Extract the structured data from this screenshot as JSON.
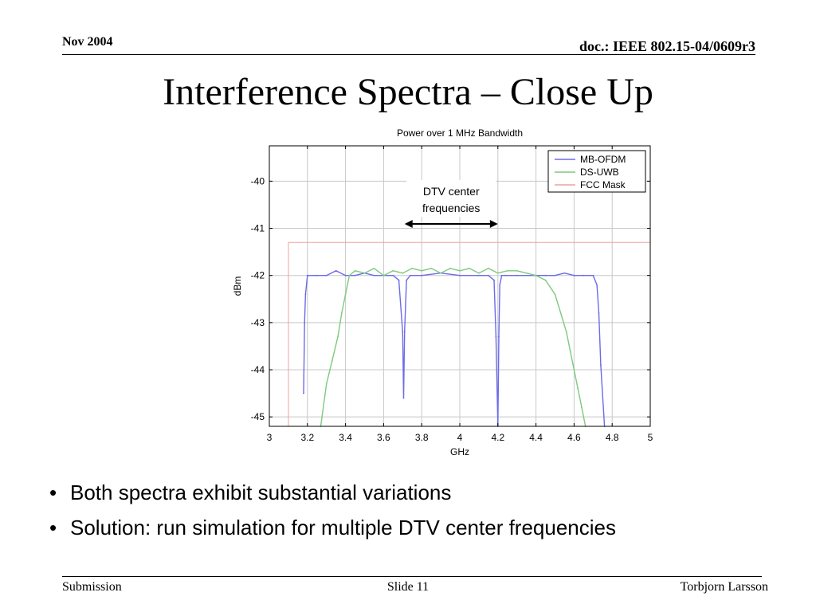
{
  "header": {
    "date": "Nov 2004",
    "doc": "doc.: IEEE 802.15-04/0609r3"
  },
  "slide_title": "Interference Spectra – Close Up",
  "bullets": [
    "Both spectra exhibit substantial variations",
    "Solution: run simulation for multiple DTV center frequencies"
  ],
  "footer": {
    "left": "Submission",
    "center": "Slide 11",
    "right": "Torbjorn Larsson"
  },
  "colors": {
    "mb_ofdm": "#6b6bea",
    "ds_uwb": "#7fc97f",
    "fcc_mask": "#f0a0a0"
  },
  "chart_data": {
    "type": "line",
    "title": "Power over 1 MHz Bandwidth",
    "xlabel": "GHz",
    "ylabel": "dBm",
    "xlim": [
      3,
      5
    ],
    "ylim": [
      -45.2,
      -39.25
    ],
    "xticks": [
      "3",
      "3.2",
      "3.4",
      "3.6",
      "3.8",
      "4",
      "4.2",
      "4.4",
      "4.6",
      "4.8",
      "5"
    ],
    "yticks": [
      "-40",
      "-41",
      "-42",
      "-43",
      "-44",
      "-45"
    ],
    "grid": true,
    "legend_position": "top-right",
    "annotation": {
      "text": [
        "DTV center",
        "frequencies"
      ],
      "arrow_x": [
        3.71,
        4.2
      ]
    },
    "series": [
      {
        "name": "MB-OFDM",
        "x": [
          3.18,
          3.185,
          3.19,
          3.2,
          3.25,
          3.3,
          3.35,
          3.4,
          3.45,
          3.5,
          3.55,
          3.6,
          3.65,
          3.68,
          3.7,
          3.705,
          3.71,
          3.72,
          3.74,
          3.8,
          3.9,
          4.0,
          4.1,
          4.15,
          4.18,
          4.19,
          4.2,
          4.205,
          4.21,
          4.22,
          4.24,
          4.3,
          4.4,
          4.45,
          4.5,
          4.55,
          4.6,
          4.65,
          4.7,
          4.72,
          4.73,
          4.74,
          4.76
        ],
        "y": [
          -44.5,
          -43.0,
          -42.4,
          -42.0,
          -42.0,
          -42.0,
          -41.9,
          -42.0,
          -42.0,
          -41.95,
          -42.0,
          -42.0,
          -42.0,
          -42.1,
          -43.2,
          -44.6,
          -43.2,
          -42.1,
          -42.0,
          -42.0,
          -41.95,
          -42.0,
          -42.0,
          -42.0,
          -42.1,
          -43.3,
          -45.2,
          -43.3,
          -42.2,
          -42.0,
          -42.0,
          -42.0,
          -42.0,
          -42.0,
          -42.0,
          -41.95,
          -42.0,
          -42.0,
          -42.0,
          -42.2,
          -42.8,
          -43.9,
          -45.2
        ]
      },
      {
        "name": "DS-UWB",
        "x": [
          3.27,
          3.3,
          3.33,
          3.36,
          3.38,
          3.4,
          3.42,
          3.45,
          3.5,
          3.55,
          3.6,
          3.65,
          3.7,
          3.75,
          3.8,
          3.85,
          3.9,
          3.95,
          4.0,
          4.05,
          4.1,
          4.15,
          4.2,
          4.25,
          4.3,
          4.35,
          4.4,
          4.45,
          4.5,
          4.53,
          4.56,
          4.58,
          4.6,
          4.62,
          4.64,
          4.66
        ],
        "y": [
          -45.2,
          -44.3,
          -43.8,
          -43.3,
          -42.8,
          -42.4,
          -42.0,
          -41.9,
          -41.95,
          -41.85,
          -42.0,
          -41.9,
          -41.95,
          -41.85,
          -41.9,
          -41.85,
          -41.95,
          -41.85,
          -41.9,
          -41.85,
          -41.95,
          -41.85,
          -41.95,
          -41.9,
          -41.9,
          -41.95,
          -42.0,
          -42.1,
          -42.4,
          -42.8,
          -43.2,
          -43.6,
          -44.0,
          -44.4,
          -44.8,
          -45.2
        ]
      },
      {
        "name": "FCC Mask",
        "x": [
          3.1,
          3.1,
          5.0
        ],
        "y": [
          -45.2,
          -41.3,
          -41.3
        ]
      }
    ]
  }
}
